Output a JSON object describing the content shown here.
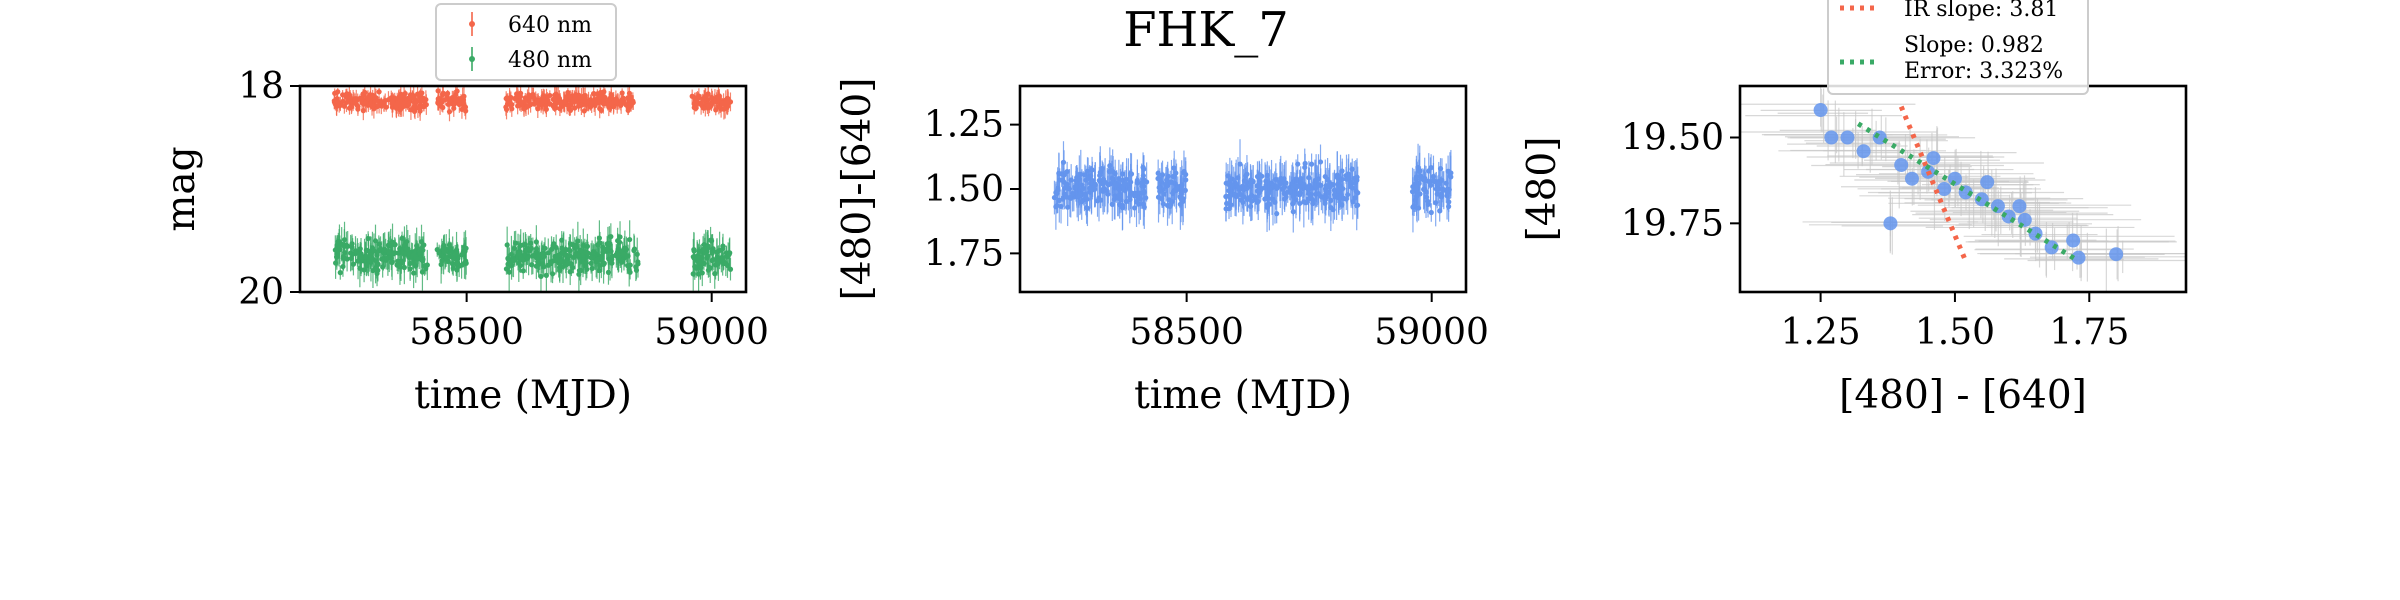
{
  "figure": {
    "title": "FHK_7"
  },
  "chart_data": [
    {
      "type": "scatter",
      "panel": "light-curve",
      "xlabel": "time (MJD)",
      "ylabel": "mag",
      "xlim": [
        58160,
        59070
      ],
      "ylim": [
        20,
        18
      ],
      "y_inverted": true,
      "xticks": [
        58500,
        59000
      ],
      "xtick_labels": [
        "58500",
        "59000"
      ],
      "yticks": [
        18,
        20
      ],
      "ytick_labels": [
        "18",
        "20"
      ],
      "legend": {
        "placement": "top-center-above"
      },
      "series": [
        {
          "name": "640 nm",
          "color": "#f4664a",
          "segments": [
            [
              58230,
              58420
            ],
            [
              58440,
              58500
            ],
            [
              58580,
              58840
            ],
            [
              58960,
              59040
            ]
          ],
          "y_center": 18.15,
          "y_spread": 0.12
        },
        {
          "name": "480 nm",
          "color": "#3aaa66",
          "segments": [
            [
              58230,
              58420
            ],
            [
              58440,
              58500
            ],
            [
              58580,
              58850
            ],
            [
              58960,
              59040
            ]
          ],
          "y_center": 19.65,
          "y_spread": 0.22
        }
      ]
    },
    {
      "type": "scatter",
      "panel": "color-curve",
      "xlabel": "time (MJD)",
      "ylabel": "[480]-[640]",
      "xlim": [
        58160,
        59070
      ],
      "ylim": [
        1.9,
        1.1
      ],
      "y_inverted": true,
      "xticks": [
        58500,
        59000
      ],
      "xtick_labels": [
        "58500",
        "59000"
      ],
      "yticks": [
        1.25,
        1.5,
        1.75
      ],
      "ytick_labels": [
        "1.25",
        "1.50",
        "1.75"
      ],
      "series": [
        {
          "color": "#6495ed",
          "segments": [
            [
              58230,
              58420
            ],
            [
              58440,
              58500
            ],
            [
              58580,
              58850
            ],
            [
              58960,
              59040
            ]
          ],
          "y_center": 1.5,
          "y_spread": 0.12
        }
      ]
    },
    {
      "type": "scatter",
      "panel": "color-magnitude",
      "xlabel": "[480] - [640]",
      "ylabel": "[480]",
      "xlim": [
        1.1,
        1.93
      ],
      "ylim": [
        19.95,
        19.35
      ],
      "y_inverted": true,
      "xticks": [
        1.25,
        1.5,
        1.75
      ],
      "xtick_labels": [
        "1.25",
        "1.50",
        "1.75"
      ],
      "yticks": [
        19.5,
        19.75
      ],
      "ytick_labels": [
        "19.50",
        "19.75"
      ],
      "points_color": "#6495ed",
      "errorbar_color": "#c8c8c8",
      "points": [
        [
          1.25,
          19.42
        ],
        [
          1.27,
          19.5
        ],
        [
          1.3,
          19.5
        ],
        [
          1.33,
          19.54
        ],
        [
          1.36,
          19.5
        ],
        [
          1.4,
          19.58
        ],
        [
          1.42,
          19.62
        ],
        [
          1.45,
          19.6
        ],
        [
          1.48,
          19.65
        ],
        [
          1.5,
          19.62
        ],
        [
          1.52,
          19.66
        ],
        [
          1.55,
          19.68
        ],
        [
          1.58,
          19.7
        ],
        [
          1.6,
          19.73
        ],
        [
          1.62,
          19.7
        ],
        [
          1.65,
          19.78
        ],
        [
          1.68,
          19.82
        ],
        [
          1.72,
          19.8
        ],
        [
          1.73,
          19.85
        ],
        [
          1.8,
          19.84
        ],
        [
          1.38,
          19.75
        ],
        [
          1.46,
          19.56
        ],
        [
          1.56,
          19.63
        ],
        [
          1.63,
          19.74
        ]
      ],
      "fits": [
        {
          "name": "IR slope: 3.81",
          "color": "#f4664a",
          "x": [
            1.4,
            1.52
          ],
          "y": [
            19.41,
            19.86
          ]
        },
        {
          "name": "Slope: 0.982\nError: 3.323%",
          "color": "#3aaa66",
          "x": [
            1.32,
            1.73
          ],
          "y": [
            19.46,
            19.86
          ]
        }
      ],
      "legend": {
        "placement": "top-center-above"
      }
    }
  ]
}
